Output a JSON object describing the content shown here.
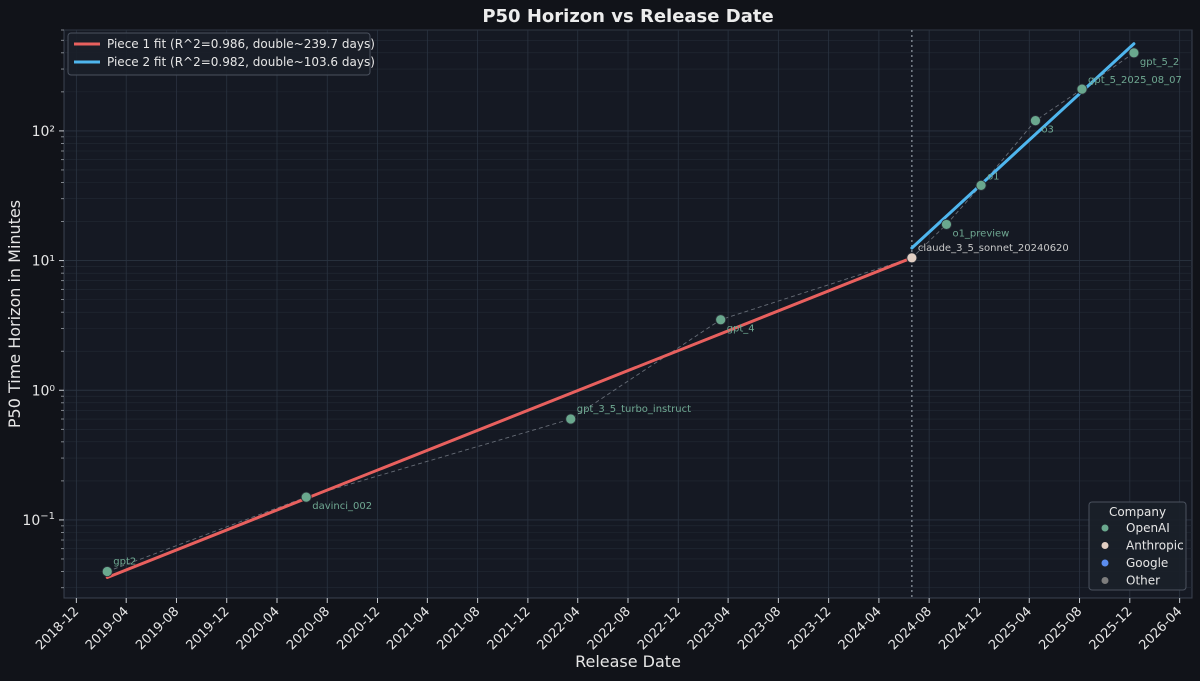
{
  "chart_data": {
    "type": "line",
    "title": "P50 Horizon vs Release Date",
    "xlabel": "Release Date",
    "ylabel": "P50 Time Horizon in Minutes",
    "yscale": "log",
    "ylim": [
      0.025,
      600
    ],
    "xlim": [
      "2018-11-01",
      "2026-05-01"
    ],
    "grid": true,
    "x_ticks": [
      "2018-12",
      "2019-04",
      "2019-08",
      "2019-12",
      "2020-04",
      "2020-08",
      "2020-12",
      "2021-04",
      "2021-08",
      "2021-12",
      "2022-04",
      "2022-08",
      "2022-12",
      "2023-04",
      "2023-08",
      "2023-12",
      "2024-04",
      "2024-08",
      "2024-12",
      "2025-04",
      "2025-08",
      "2025-12",
      "2026-04"
    ],
    "y_ticks": [
      {
        "value": 0.1,
        "base": "10",
        "exp": "−1"
      },
      {
        "value": 1,
        "label": "10⁰"
      },
      {
        "value": 10,
        "label": "10¹"
      },
      {
        "value": 100,
        "label": "10²"
      }
    ],
    "points": [
      {
        "name": "gpt2",
        "date": "2019-02-14",
        "value": 0.04,
        "company": "OpenAI"
      },
      {
        "name": "davinci_002",
        "date": "2020-06-11",
        "value": 0.15,
        "company": "OpenAI"
      },
      {
        "name": "gpt_3_5_turbo_instruct",
        "date": "2022-03-15",
        "value": 0.6,
        "company": "OpenAI"
      },
      {
        "name": "gpt_4",
        "date": "2023-03-14",
        "value": 3.5,
        "company": "OpenAI"
      },
      {
        "name": "claude_3_5_sonnet_20240620",
        "date": "2024-06-20",
        "value": 10.5,
        "company": "Anthropic"
      },
      {
        "name": "o1_preview",
        "date": "2024-09-12",
        "value": 19,
        "company": "OpenAI"
      },
      {
        "name": "o1",
        "date": "2024-12-05",
        "value": 38,
        "company": "OpenAI"
      },
      {
        "name": "o3",
        "date": "2025-04-16",
        "value": 120,
        "company": "OpenAI"
      },
      {
        "name": "gpt_5_2025_08_07",
        "date": "2025-08-07",
        "value": 210,
        "company": "OpenAI"
      },
      {
        "name": "gpt_5_2",
        "date": "2025-12-11",
        "value": 400,
        "company": "OpenAI"
      }
    ],
    "series": [
      {
        "name": "Piece 1 fit (R^2=0.986, double~239.7 days)",
        "color": "#e8605e",
        "x": [
          "2019-02-14",
          "2024-06-20"
        ],
        "values": [
          0.036,
          10.5
        ]
      },
      {
        "name": "Piece 2 fit (R^2=0.982, double~103.6 days)",
        "color": "#4fb6ee",
        "x": [
          "2024-06-20",
          "2025-12-11"
        ],
        "values": [
          12.5,
          470
        ]
      }
    ],
    "breakpoint_date": "2024-06-20",
    "legend_fits_placement": "top-left",
    "company_legend": {
      "title": "Company",
      "placement": "bottom-right",
      "items": [
        {
          "label": "OpenAI",
          "color": "#6aa88e"
        },
        {
          "label": "Anthropic",
          "color": "#e2cfc3"
        },
        {
          "label": "Google",
          "color": "#5b8def"
        },
        {
          "label": "Other",
          "color": "#7d7d7d"
        }
      ]
    },
    "colors": {
      "background": "#111319",
      "plot_background": "#151923",
      "grid": "#2a3340",
      "text": "#e6e6e6",
      "point_label": "#6fa892"
    }
  }
}
